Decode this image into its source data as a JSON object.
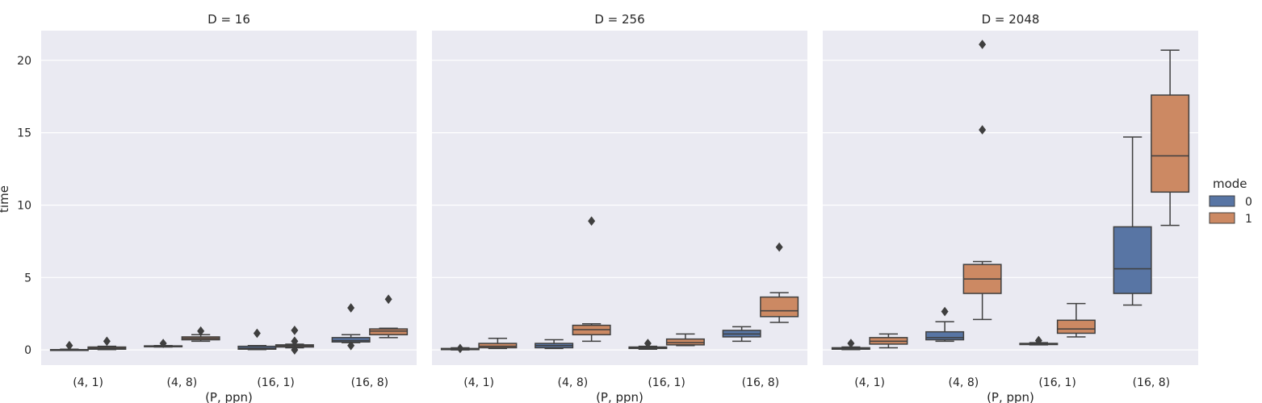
{
  "chart_data": {
    "type": "box",
    "ylabel": "time",
    "xlabel": "(P, ppn)",
    "ylim": [
      -1.05,
      22.05
    ],
    "yticks": [
      0,
      5,
      10,
      15,
      20
    ],
    "grid": true,
    "legend": {
      "title": "mode",
      "placement": "right",
      "entries": [
        "0",
        "1"
      ]
    },
    "colors": {
      "0": "#5875a4",
      "1": "#cc8963",
      "background": "#eaeaf2",
      "line": "#3f3f3f"
    },
    "categories": [
      "(4, 1)",
      "(4, 8)",
      "(16, 1)",
      "(16, 8)"
    ],
    "panels": [
      {
        "title": "D = 16",
        "boxes": [
          {
            "category": "(4, 1)",
            "mode": "0",
            "whislo": -0.02,
            "q1": -0.01,
            "median": 0.0,
            "q3": 0.02,
            "whishi": 0.05,
            "fliers": [
              0.3
            ]
          },
          {
            "category": "(4, 1)",
            "mode": "1",
            "whislo": 0.02,
            "q1": 0.05,
            "median": 0.12,
            "q3": 0.2,
            "whishi": 0.25,
            "fliers": [
              0.6
            ]
          },
          {
            "category": "(4, 8)",
            "mode": "0",
            "whislo": 0.2,
            "q1": 0.22,
            "median": 0.25,
            "q3": 0.28,
            "whishi": 0.3,
            "fliers": [
              0.45
            ]
          },
          {
            "category": "(4, 8)",
            "mode": "1",
            "whislo": 0.6,
            "q1": 0.7,
            "median": 0.8,
            "q3": 0.9,
            "whishi": 1.05,
            "fliers": [
              1.3
            ]
          },
          {
            "category": "(16, 1)",
            "mode": "0",
            "whislo": 0.02,
            "q1": 0.05,
            "median": 0.12,
            "q3": 0.25,
            "whishi": 0.3,
            "fliers": [
              1.15
            ]
          },
          {
            "category": "(16, 1)",
            "mode": "1",
            "whislo": 0.15,
            "q1": 0.2,
            "median": 0.28,
            "q3": 0.35,
            "whishi": 0.4,
            "fliers": [
              0.0,
              0.6,
              1.35
            ]
          },
          {
            "category": "(16, 8)",
            "mode": "0",
            "whislo": 0.5,
            "q1": 0.55,
            "median": 0.65,
            "q3": 0.85,
            "whishi": 1.05,
            "fliers": [
              0.3,
              2.9
            ]
          },
          {
            "category": "(16, 8)",
            "mode": "1",
            "whislo": 0.85,
            "q1": 1.05,
            "median": 1.3,
            "q3": 1.45,
            "whishi": 1.5,
            "fliers": [
              3.5
            ]
          }
        ]
      },
      {
        "title": "D = 256",
        "boxes": [
          {
            "category": "(4, 1)",
            "mode": "0",
            "whislo": 0.0,
            "q1": 0.02,
            "median": 0.05,
            "q3": 0.1,
            "whishi": 0.15,
            "fliers": [
              0.1
            ]
          },
          {
            "category": "(4, 1)",
            "mode": "1",
            "whislo": 0.1,
            "q1": 0.15,
            "median": 0.25,
            "q3": 0.45,
            "whishi": 0.8,
            "fliers": []
          },
          {
            "category": "(4, 8)",
            "mode": "0",
            "whislo": 0.1,
            "q1": 0.15,
            "median": 0.3,
            "q3": 0.45,
            "whishi": 0.7,
            "fliers": []
          },
          {
            "category": "(4, 8)",
            "mode": "1",
            "whislo": 0.6,
            "q1": 1.05,
            "median": 1.4,
            "q3": 1.7,
            "whishi": 1.8,
            "fliers": [
              8.9
            ]
          },
          {
            "category": "(16, 1)",
            "mode": "0",
            "whislo": 0.05,
            "q1": 0.1,
            "median": 0.15,
            "q3": 0.2,
            "whishi": 0.25,
            "fliers": [
              0.45
            ]
          },
          {
            "category": "(16, 1)",
            "mode": "1",
            "whislo": 0.3,
            "q1": 0.35,
            "median": 0.5,
            "q3": 0.75,
            "whishi": 1.1,
            "fliers": []
          },
          {
            "category": "(16, 8)",
            "mode": "0",
            "whislo": 0.6,
            "q1": 0.9,
            "median": 1.1,
            "q3": 1.35,
            "whishi": 1.6,
            "fliers": []
          },
          {
            "category": "(16, 8)",
            "mode": "1",
            "whislo": 1.9,
            "q1": 2.3,
            "median": 2.7,
            "q3": 3.65,
            "whishi": 3.95,
            "fliers": [
              7.1
            ]
          }
        ]
      },
      {
        "title": "D = 2048",
        "boxes": [
          {
            "category": "(4, 1)",
            "mode": "0",
            "whislo": 0.02,
            "q1": 0.05,
            "median": 0.1,
            "q3": 0.15,
            "whishi": 0.2,
            "fliers": [
              0.45
            ]
          },
          {
            "category": "(4, 1)",
            "mode": "1",
            "whislo": 0.15,
            "q1": 0.4,
            "median": 0.6,
            "q3": 0.85,
            "whishi": 1.1,
            "fliers": []
          },
          {
            "category": "(4, 8)",
            "mode": "0",
            "whislo": 0.6,
            "q1": 0.7,
            "median": 0.85,
            "q3": 1.25,
            "whishi": 1.95,
            "fliers": [
              2.65
            ]
          },
          {
            "category": "(4, 8)",
            "mode": "1",
            "whislo": 2.1,
            "q1": 3.9,
            "median": 4.9,
            "q3": 5.9,
            "whishi": 6.1,
            "fliers": [
              15.2,
              21.1
            ]
          },
          {
            "category": "(16, 1)",
            "mode": "0",
            "whislo": 0.35,
            "q1": 0.37,
            "median": 0.4,
            "q3": 0.45,
            "whishi": 0.5,
            "fliers": [
              0.65
            ]
          },
          {
            "category": "(16, 1)",
            "mode": "1",
            "whislo": 0.9,
            "q1": 1.15,
            "median": 1.45,
            "q3": 2.05,
            "whishi": 3.2,
            "fliers": []
          },
          {
            "category": "(16, 8)",
            "mode": "0",
            "whislo": 3.1,
            "q1": 3.9,
            "median": 5.6,
            "q3": 8.5,
            "whishi": 14.7,
            "fliers": []
          },
          {
            "category": "(16, 8)",
            "mode": "1",
            "whislo": 8.6,
            "q1": 10.9,
            "median": 13.4,
            "q3": 17.6,
            "whishi": 20.7,
            "fliers": []
          }
        ]
      }
    ]
  }
}
